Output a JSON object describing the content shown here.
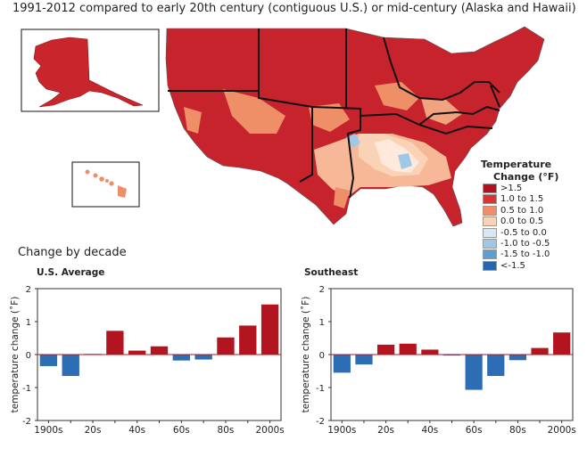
{
  "header": {
    "title": "1991-2012 compared to early 20th century (contiguous U.S.) or mid-century (Alaska and Hawaii)"
  },
  "map_legend": {
    "title_line1": "Temperature",
    "title_line2": "Change (°F)",
    "items": [
      {
        "label": ">1.5",
        "color": "#b4111f"
      },
      {
        "label": "1.0 to 1.5",
        "color": "#d9352f"
      },
      {
        "label": "0.5 to 1.0",
        "color": "#ee8f68"
      },
      {
        "label": "0.0 to 0.5",
        "color": "#fad2b5"
      },
      {
        "label": "-0.5 to 0.0",
        "color": "#d7e7f4"
      },
      {
        "label": "-1.0 to -0.5",
        "color": "#9fc7e6"
      },
      {
        "label": "-1.5 to -1.0",
        "color": "#5d9fd3"
      },
      {
        "label": "<-1.5",
        "color": "#2765ae"
      }
    ]
  },
  "decade_section": {
    "heading": "Change by decade"
  },
  "colors": {
    "positive": "#b2151f",
    "negative": "#2d6db3",
    "border": "#111111"
  },
  "chart_data": [
    {
      "type": "bar",
      "title": "U.S. Average",
      "ylabel": "temperature change (˚F)",
      "xlabel": "",
      "ylim": [
        -2,
        2
      ],
      "yticks": [
        2,
        1,
        0,
        -1,
        -2
      ],
      "categories": [
        "1900s",
        "1910s",
        "1920s",
        "1930s",
        "1940s",
        "1950s",
        "1960s",
        "1970s",
        "1980s",
        "1990s",
        "2000s"
      ],
      "xtick_labels": [
        "1900s",
        "",
        "20s",
        "",
        "40s",
        "",
        "60s",
        "",
        "80s",
        "",
        "2000s"
      ],
      "values": [
        -0.35,
        -0.65,
        0.02,
        0.72,
        0.12,
        0.25,
        -0.18,
        -0.15,
        0.52,
        0.88,
        1.52
      ],
      "grid": false
    },
    {
      "type": "bar",
      "title": "Southeast",
      "ylabel": "temperature change (˚F)",
      "xlabel": "",
      "ylim": [
        -2,
        2
      ],
      "yticks": [
        2,
        1,
        0,
        -1,
        -2
      ],
      "categories": [
        "1900s",
        "1910s",
        "1920s",
        "1930s",
        "1940s",
        "1950s",
        "1960s",
        "1970s",
        "1980s",
        "1990s",
        "2000s"
      ],
      "xtick_labels": [
        "1900s",
        "",
        "20s",
        "",
        "40s",
        "",
        "60s",
        "",
        "80s",
        "",
        "2000s"
      ],
      "values": [
        -0.55,
        -0.3,
        0.3,
        0.33,
        0.15,
        -0.03,
        -1.07,
        -0.65,
        -0.17,
        0.2,
        0.67
      ],
      "grid": false
    }
  ]
}
